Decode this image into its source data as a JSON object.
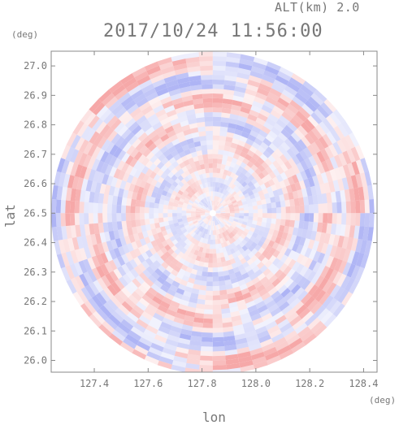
{
  "header": {
    "altitude_label": "ALT(km) 2.0",
    "timestamp": "2017/10/24 11:56:00"
  },
  "chart_data": {
    "type": "heatmap",
    "title": "2017/10/24 11:56:00",
    "subtitle": "ALT(km) 2.0",
    "xlabel": "lon",
    "ylabel": "lat",
    "x_unit": "(deg)",
    "y_unit": "(deg)",
    "xlim": [
      127.24,
      128.45
    ],
    "ylim": [
      25.96,
      27.05
    ],
    "x_ticks": [
      "127.4",
      "127.6",
      "127.8",
      "128.0",
      "128.2",
      "128.4"
    ],
    "y_ticks": [
      "27.0",
      "26.9",
      "26.8",
      "26.7",
      "26.6",
      "26.5",
      "26.4",
      "26.3",
      "26.2",
      "26.1",
      "26.0"
    ],
    "center": {
      "lon": 127.84,
      "lat": 26.5
    },
    "radius_deg": 0.6,
    "colors": {
      "positive": "#f6a3a3",
      "negative": "#aab0f4",
      "neutral": "#ffffff"
    },
    "grid": false
  }
}
